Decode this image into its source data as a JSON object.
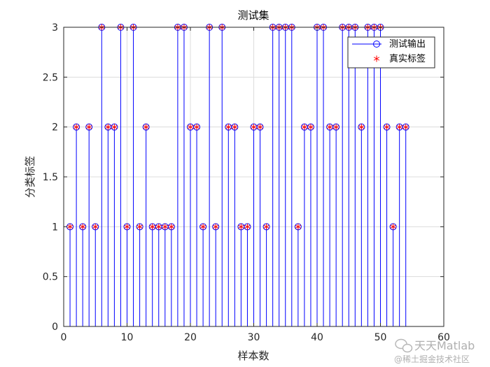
{
  "chart_data": {
    "type": "stem",
    "title": "测试集",
    "xlabel": "样本数",
    "ylabel": "分类标签",
    "xlim": [
      0,
      60
    ],
    "ylim": [
      0,
      3
    ],
    "xticks": [
      "0",
      "10",
      "20",
      "30",
      "40",
      "50",
      "60"
    ],
    "yticks": [
      "0",
      "0.5",
      "1",
      "1.5",
      "2",
      "2.5",
      "3"
    ],
    "grid": true,
    "legend_position": "top-right",
    "x": [
      1,
      2,
      3,
      4,
      5,
      6,
      7,
      8,
      9,
      10,
      11,
      12,
      13,
      14,
      15,
      16,
      17,
      18,
      19,
      20,
      21,
      22,
      23,
      24,
      25,
      26,
      27,
      28,
      29,
      30,
      31,
      32,
      33,
      34,
      35,
      36,
      37,
      38,
      39,
      40,
      41,
      42,
      43,
      44,
      45,
      46,
      47,
      48,
      49,
      50,
      51,
      52,
      53,
      54
    ],
    "series": [
      {
        "name": "测试输出",
        "marker": "circle",
        "style": "stem",
        "color": "#0000ff",
        "values": [
          1,
          2,
          1,
          2,
          1,
          3,
          2,
          2,
          3,
          1,
          3,
          1,
          2,
          1,
          1,
          1,
          1,
          3,
          3,
          2,
          2,
          1,
          3,
          1,
          3,
          2,
          2,
          1,
          1,
          2,
          2,
          1,
          3,
          3,
          3,
          3,
          1,
          2,
          2,
          3,
          3,
          2,
          2,
          3,
          3,
          3,
          2,
          3,
          3,
          3,
          2,
          1,
          2,
          2
        ]
      },
      {
        "name": "真实标签",
        "marker": "asterisk",
        "style": "marker",
        "color": "#ff0000",
        "values": [
          1,
          2,
          1,
          2,
          1,
          3,
          2,
          2,
          3,
          1,
          3,
          1,
          2,
          1,
          1,
          1,
          1,
          3,
          3,
          2,
          2,
          1,
          3,
          1,
          3,
          2,
          2,
          1,
          1,
          2,
          2,
          1,
          3,
          3,
          3,
          3,
          1,
          2,
          2,
          3,
          3,
          2,
          2,
          3,
          3,
          3,
          2,
          3,
          3,
          3,
          2,
          1,
          2,
          2
        ]
      }
    ],
    "colors": {
      "stem": "#0000ff",
      "truth": "#ff0000",
      "grid": "#dcdcdc",
      "axis": "#262626"
    }
  },
  "watermark": {
    "line1": "天天Matlab",
    "line2": "@稀土掘金技术社区"
  }
}
